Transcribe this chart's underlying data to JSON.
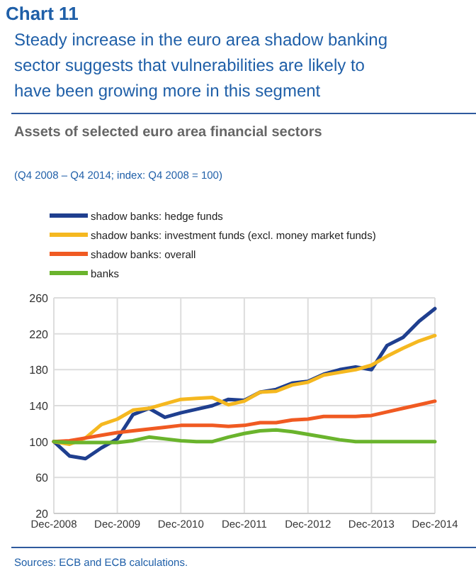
{
  "chart_data": {
    "type": "line",
    "title": "Chart 11",
    "subtitle": "Steady increase in the euro area shadow banking sector suggests that vulnerabilities are likely to have been growing more in this segment",
    "annotations": [
      "Assets of selected euro area financial sectors",
      "(Q4 2008 – Q4 2014; index: Q4 2008 = 100)",
      "Sources: ECB and ECB calculations."
    ],
    "x": [
      "2008-12",
      "2009-03",
      "2009-06",
      "2009-09",
      "2009-12",
      "2010-03",
      "2010-06",
      "2010-09",
      "2010-12",
      "2011-03",
      "2011-06",
      "2011-09",
      "2011-12",
      "2012-03",
      "2012-06",
      "2012-09",
      "2012-12",
      "2013-03",
      "2013-06",
      "2013-09",
      "2013-12",
      "2014-03",
      "2014-06",
      "2014-09",
      "2014-12"
    ],
    "series": [
      {
        "name": "shadow banks: hedge funds",
        "color": "#1f3f8f",
        "values": [
          100,
          84,
          81,
          93,
          103,
          130,
          137,
          127,
          132,
          136,
          140,
          147,
          146,
          155,
          158,
          165,
          167,
          175,
          180,
          183,
          180,
          207,
          216,
          234,
          248
        ]
      },
      {
        "name": "shadow banks: investment funds (excl. money market funds)",
        "color": "#f5b820",
        "values": [
          100,
          97,
          104,
          119,
          125,
          135,
          137,
          142,
          147,
          148,
          149,
          141,
          145,
          155,
          156,
          163,
          166,
          174,
          177,
          180,
          185,
          195,
          204,
          212,
          218
        ]
      },
      {
        "name": "shadow banks: overall",
        "color": "#f05a22",
        "values": [
          100,
          101,
          104,
          107,
          110,
          112,
          114,
          116,
          118,
          118,
          118,
          117,
          118,
          121,
          121,
          124,
          125,
          128,
          128,
          128,
          129,
          133,
          137,
          141,
          145
        ]
      },
      {
        "name": "banks",
        "color": "#6ab42d",
        "values": [
          100,
          99,
          99,
          99,
          99,
          101,
          105,
          103,
          101,
          100,
          100,
          105,
          109,
          112,
          113,
          111,
          108,
          105,
          102,
          100,
          100,
          100,
          100,
          100,
          100
        ]
      }
    ],
    "xlim": [
      "2008-12",
      "2014-12"
    ],
    "xticks": [
      {
        "value": "2008-12",
        "label": "Dec-2008"
      },
      {
        "value": "2009-12",
        "label": "Dec-2009"
      },
      {
        "value": "2010-12",
        "label": "Dec-2010"
      },
      {
        "value": "2011-12",
        "label": "Dec-2011"
      },
      {
        "value": "2012-12",
        "label": "Dec-2012"
      },
      {
        "value": "2013-12",
        "label": "Dec-2013"
      },
      {
        "value": "2014-12",
        "label": "Dec-2014"
      }
    ],
    "ylim": [
      20,
      260
    ],
    "yticks": [
      20,
      60,
      100,
      140,
      180,
      220,
      260
    ],
    "grid": true,
    "legend": "top",
    "marker": "none",
    "line_style": "solid"
  }
}
